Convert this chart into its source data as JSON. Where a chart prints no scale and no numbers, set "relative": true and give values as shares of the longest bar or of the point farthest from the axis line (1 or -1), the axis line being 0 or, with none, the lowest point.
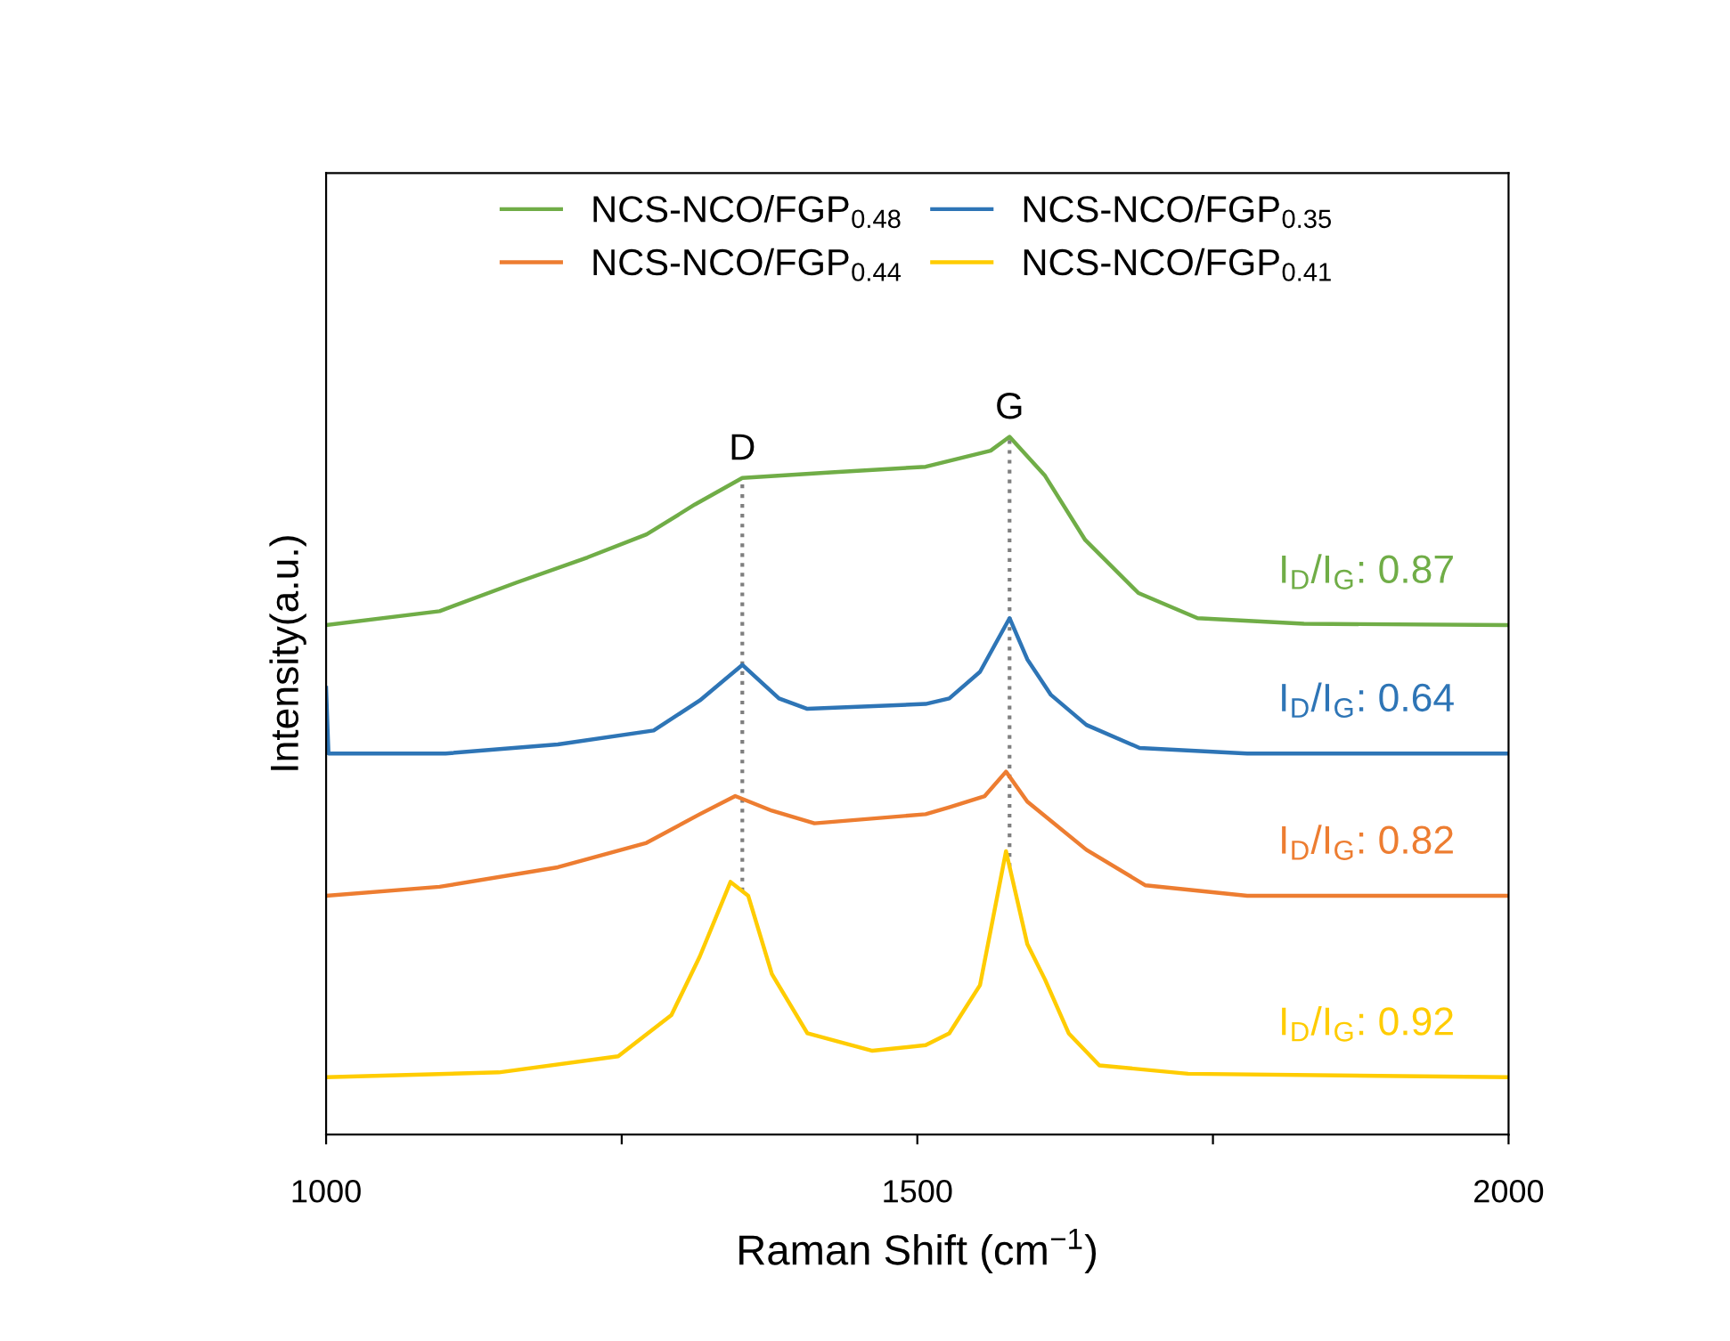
{
  "chart_data": {
    "type": "line",
    "relative": true,
    "xlabel": "Raman Shift (cm$^{−1}$)",
    "ylabel": "Intensity(a.u.)",
    "xlim": [
      1000,
      2000
    ],
    "xticks": [
      1000,
      {
        "value": 1250,
        "label": null
      },
      1500,
      {
        "value": 1750,
        "label": null
      },
      2000
    ],
    "legend": "top",
    "grid": false,
    "line_style": "solid",
    "marker": "none",
    "series": [
      {
        "name": "NCS-NCO/FGP$_{0.48}$",
        "color": "#70ad47",
        "x": [
          1000,
          1096,
          1161,
          1221,
          1271,
          1312,
          1352,
          1427,
          1507,
          1562,
          1578,
          1608,
          1642,
          1687,
          1737,
          1827,
          2000
        ],
        "values": [
          0.73,
          0.75,
          0.791,
          0.827,
          0.86,
          0.903,
          0.941,
          0.949,
          0.957,
          0.98,
          1.0,
          0.944,
          0.852,
          0.776,
          0.74,
          0.732,
          0.73
        ]
      },
      {
        "name": "NCS-NCO/FGP$_{0.35}$",
        "color": "#2e75b6",
        "x": [
          1000,
          1002,
          1011,
          1101,
          1196,
          1277,
          1316,
          1352,
          1383,
          1407,
          1507,
          1527,
          1553,
          1578,
          1593,
          1613,
          1643,
          1688,
          1779,
          2000
        ],
        "values": [
          0.64,
          0.546,
          0.546,
          0.546,
          0.559,
          0.579,
          0.622,
          0.673,
          0.625,
          0.61,
          0.617,
          0.625,
          0.663,
          0.74,
          0.681,
          0.63,
          0.587,
          0.554,
          0.546,
          0.546
        ]
      },
      {
        "name": "NCS-NCO/FGP$_{0.44}$",
        "color": "#ed7d31",
        "x": [
          1000,
          1096,
          1196,
          1271,
          1316,
          1346,
          1377,
          1413,
          1507,
          1527,
          1557,
          1575,
          1593,
          1643,
          1693,
          1779,
          2000
        ],
        "values": [
          0.342,
          0.355,
          0.383,
          0.418,
          0.459,
          0.485,
          0.464,
          0.446,
          0.459,
          0.469,
          0.485,
          0.52,
          0.477,
          0.408,
          0.357,
          0.342,
          0.342
        ]
      },
      {
        "name": "NCS-NCO/FGP$_{0.41}$",
        "color": "#ffcc00",
        "x": [
          1000,
          1146,
          1247,
          1292,
          1316,
          1342,
          1357,
          1377,
          1407,
          1462,
          1507,
          1527,
          1553,
          1575,
          1593,
          1608,
          1628,
          1654,
          1729,
          2000
        ],
        "values": [
          0.082,
          0.089,
          0.112,
          0.171,
          0.255,
          0.362,
          0.342,
          0.23,
          0.145,
          0.12,
          0.128,
          0.145,
          0.214,
          0.406,
          0.273,
          0.222,
          0.145,
          0.099,
          0.087,
          0.082
        ]
      }
    ],
    "ref_lines": [
      {
        "axis": "x",
        "value": 1352,
        "label": "D",
        "color": "#7f7f7f",
        "line_style": "dotted"
      },
      {
        "axis": "x",
        "value": 1578,
        "label": "G",
        "color": "#7f7f7f",
        "line_style": "dotted"
      }
    ],
    "annotations": [
      "I$_{D}$/I$_{G}$: 0.87",
      "I$_{D}$/I$_{G}$: 0.64",
      "I$_{D}$/I$_{G}$: 0.82",
      "I$_{D}$/I$_{G}$: 0.92"
    ]
  }
}
